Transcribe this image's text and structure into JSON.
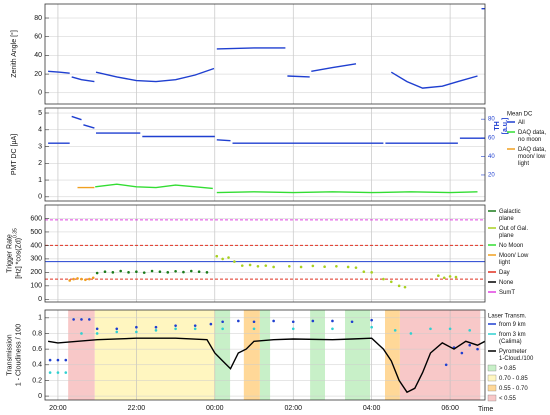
{
  "chart_data": [
    {
      "type": "line",
      "ylabel": [
        "Zenith Angle [°]"
      ],
      "xlim": [
        19.67,
        30.89
      ],
      "ylim": [
        -12,
        95
      ],
      "yticks": [
        0,
        20,
        40,
        60,
        80
      ],
      "grid": true,
      "series": [
        {
          "color": "#1f3fd0",
          "style": "line",
          "x": [
            19.75,
            20.05,
            20.3,
            20.32,
            20.35,
            20.6,
            20.93,
            20.95,
            20.97,
            21.5,
            22.0,
            22.5,
            23.0,
            23.5,
            23.98,
            24.0,
            24.05,
            25.0,
            25.8,
            25.82,
            25.85,
            26.42,
            26.44,
            26.46,
            27.0,
            27.6,
            28.0,
            28.5,
            28.9,
            29.3,
            29.8,
            30.2,
            30.7,
            30.75,
            30.8,
            30.89
          ],
          "values": [
            23,
            22,
            21,
            null,
            17,
            14,
            12,
            null,
            22,
            17,
            13,
            12,
            14,
            19,
            26,
            null,
            47,
            48,
            48,
            null,
            18,
            17,
            null,
            23,
            27,
            31,
            null,
            22,
            12,
            5,
            7,
            12,
            18,
            null,
            90,
            90
          ]
        }
      ]
    },
    {
      "type": "line",
      "ylabel": [
        "PMT DC [µA]"
      ],
      "xlim": [
        19.67,
        30.89
      ],
      "ylim": [
        -0.25,
        5.3
      ],
      "yticks": [
        0,
        1,
        2,
        3,
        4,
        5
      ],
      "grid": true,
      "y2label": [
        "TH",
        "[a.u.]"
      ],
      "y2lim": [
        -8,
        92
      ],
      "y2ticks": [
        20,
        40,
        60,
        80
      ],
      "y2color": "#1f3fd0",
      "legend_title": "Mean DC",
      "series": [
        {
          "name": "All",
          "color": "#1f3fd0",
          "style": "line",
          "x": [
            19.75,
            20.3,
            20.32,
            20.35,
            20.6,
            20.62,
            20.65,
            20.93,
            20.95,
            20.97,
            22.1,
            22.12,
            22.15,
            24.0,
            24.02,
            24.05,
            24.4,
            24.42,
            24.45,
            28.3,
            28.32,
            28.35,
            30.2,
            30.22,
            30.25,
            30.89
          ],
          "values": [
            3.2,
            3.2,
            null,
            4.8,
            4.6,
            null,
            4.3,
            4.1,
            null,
            3.8,
            3.8,
            null,
            3.6,
            3.6,
            null,
            3.4,
            3.35,
            null,
            3.2,
            3.2,
            null,
            3.2,
            3.2,
            null,
            3.5,
            3.5
          ]
        },
        {
          "name": "DAQ data, no moon",
          "color": "#33dd33",
          "style": "line",
          "x": [
            20.95,
            21.5,
            22.0,
            22.5,
            23.0,
            23.5,
            23.95,
            24.0,
            24.05,
            25.0,
            26.0,
            27.0,
            28.0,
            29.0,
            30.0,
            30.7
          ],
          "values": [
            0.6,
            0.75,
            0.6,
            0.55,
            0.7,
            0.6,
            0.5,
            null,
            0.25,
            0.3,
            0.25,
            0.3,
            0.25,
            0.3,
            0.25,
            0.3
          ]
        },
        {
          "name": "DAQ data, moon/ low light",
          "color": "#f0a020",
          "style": "line",
          "x": [
            20.5,
            20.7,
            20.93
          ],
          "values": [
            0.55,
            0.55,
            0.55
          ]
        }
      ]
    },
    {
      "type": "scatter",
      "ylabel": [
        "Trigger Rate",
        "[Hz] *cos(Zd)"
      ],
      "ylabel_exponent": "0.35",
      "xlim": [
        19.67,
        30.89
      ],
      "ylim": [
        -20,
        700
      ],
      "yticks": [
        0,
        100,
        200,
        300,
        400,
        500,
        600
      ],
      "grid": true,
      "reference_lines": [
        {
          "value": 590,
          "color": "#e040e0",
          "dash": true
        },
        {
          "value": 400,
          "color": "#e03020",
          "dash": true
        },
        {
          "value": 280,
          "color": "#2040d0",
          "dash": false
        },
        {
          "value": 150,
          "color": "#e03020",
          "dash": true
        }
      ],
      "legend_lines": [
        {
          "name": "No Moon",
          "color": "#33dd33"
        },
        {
          "name": "Moon/ Low light",
          "color": "#f0a020"
        },
        {
          "name": "Day",
          "color": "#e03020"
        },
        {
          "name": "None",
          "color": "#000000"
        },
        {
          "name": "SumT",
          "color": "#e040e0"
        }
      ],
      "series": [
        {
          "color": "#f0a020",
          "style": "points",
          "x": [
            20.3,
            20.4,
            20.5,
            20.6,
            20.7,
            20.8,
            20.9
          ],
          "values": [
            140,
            150,
            155,
            150,
            145,
            150,
            160
          ]
        },
        {
          "name": "Galactic plane",
          "color": "#1a7a1a",
          "style": "points",
          "x": [
            21.0,
            21.2,
            21.4,
            21.6,
            21.8,
            22.0,
            22.2,
            22.4,
            22.6,
            22.8,
            23.0,
            23.2,
            23.4,
            23.6,
            23.8
          ],
          "values": [
            195,
            205,
            200,
            210,
            200,
            205,
            198,
            210,
            205,
            200,
            208,
            202,
            210,
            205,
            200
          ]
        },
        {
          "name": "Out of Gal. plane",
          "color": "#a8d020",
          "style": "points",
          "x": [
            24.05,
            24.2,
            24.35,
            24.5,
            24.7,
            24.9,
            25.1,
            25.3,
            25.5,
            25.9,
            26.2,
            26.5,
            26.8,
            27.1,
            27.4,
            27.6,
            27.8,
            28.0,
            28.3,
            28.5,
            28.7,
            28.85,
            29.7,
            29.85,
            30.0,
            30.15
          ],
          "values": [
            320,
            300,
            310,
            280,
            250,
            255,
            245,
            250,
            240,
            245,
            240,
            248,
            242,
            245,
            240,
            235,
            205,
            200,
            150,
            130,
            100,
            90,
            175,
            160,
            170,
            165
          ]
        }
      ]
    },
    {
      "type": "line",
      "ylabel": [
        "Transmission",
        "1 - Cloudiness / 100"
      ],
      "xlim": [
        19.67,
        30.89
      ],
      "ylim": [
        -0.05,
        1.1
      ],
      "yticks": [
        0,
        0.2,
        0.4,
        0.6,
        0.8,
        1
      ],
      "grid": true,
      "x_label": "Time",
      "xticks": [
        {
          "value": 20,
          "label": "20:00"
        },
        {
          "value": 22,
          "label": "22:00"
        },
        {
          "value": 24,
          "label": "00:00"
        },
        {
          "value": 26,
          "label": "02:00"
        },
        {
          "value": 28,
          "label": "04:00"
        },
        {
          "value": 30,
          "label": "06:00"
        }
      ],
      "legend_title": "Laser Transm.",
      "band_legend": [
        {
          "label": "> 0.85",
          "color": "#c8f0c8"
        },
        {
          "label": "0.70 - 0.85",
          "color": "#fff6c0"
        },
        {
          "label": "0.55 - 0.70",
          "color": "#ffd898"
        },
        {
          "label": "< 0.55",
          "color": "#f8c8c8"
        }
      ],
      "bands": [
        {
          "start": 20.26,
          "end": 20.94,
          "level": 3
        },
        {
          "start": 20.94,
          "end": 24.0,
          "level": 1
        },
        {
          "start": 24.0,
          "end": 24.39,
          "level": 0
        },
        {
          "start": 24.74,
          "end": 25.15,
          "level": 2
        },
        {
          "start": 25.15,
          "end": 25.41,
          "level": 0
        },
        {
          "start": 26.43,
          "end": 26.81,
          "level": 0
        },
        {
          "start": 27.32,
          "end": 27.96,
          "level": 0
        },
        {
          "start": 28.34,
          "end": 28.72,
          "level": 2
        },
        {
          "start": 28.72,
          "end": 30.77,
          "level": 3
        }
      ],
      "series": [
        {
          "name": "from 9 km",
          "color": "#1f3fd0",
          "style": "points",
          "x": [
            19.8,
            20.0,
            20.2,
            20.4,
            20.6,
            20.8,
            21.0,
            21.5,
            22.0,
            22.5,
            23.0,
            23.5,
            23.9,
            24.2,
            24.6,
            25.0,
            25.5,
            26.0,
            26.5,
            27.0,
            27.5,
            28.0,
            29.9,
            30.1,
            30.3,
            30.5,
            30.7
          ],
          "values": [
            0.46,
            0.46,
            0.46,
            0.98,
            0.98,
            0.98,
            0.86,
            0.86,
            0.88,
            0.88,
            0.9,
            0.9,
            0.92,
            0.95,
            0.96,
            0.95,
            0.96,
            0.95,
            0.96,
            0.96,
            0.95,
            0.97,
            0.4,
            0.62,
            0.55,
            0.65,
            0.6
          ]
        },
        {
          "name": "from 3 km (Calima)",
          "color": "#30d0d0",
          "style": "points",
          "x": [
            19.8,
            20.0,
            20.2,
            20.6,
            21.0,
            21.5,
            22.0,
            22.5,
            23.0,
            23.5,
            24.2,
            25.0,
            26.0,
            27.0,
            28.0,
            28.6,
            29.0,
            29.5,
            30.0,
            30.5
          ],
          "values": [
            0.3,
            0.3,
            0.3,
            0.8,
            0.8,
            0.82,
            0.82,
            0.84,
            0.86,
            0.86,
            0.86,
            0.86,
            0.86,
            0.86,
            0.88,
            0.84,
            0.8,
            0.86,
            0.86,
            0.84
          ]
        },
        {
          "name": "Pyrometer 1-Cloud./100",
          "color": "#000000",
          "style": "line",
          "x": [
            19.75,
            20.0,
            20.5,
            21.0,
            22.0,
            23.0,
            23.8,
            24.0,
            24.2,
            24.4,
            24.6,
            24.8,
            25.0,
            25.5,
            26.0,
            27.0,
            27.5,
            28.0,
            28.3,
            28.5,
            28.7,
            28.9,
            29.1,
            29.3,
            29.5,
            29.8,
            30.1,
            30.4,
            30.7,
            30.89
          ],
          "values": [
            0.7,
            0.68,
            0.7,
            0.72,
            0.74,
            0.74,
            0.72,
            0.55,
            0.45,
            0.35,
            0.55,
            0.6,
            0.7,
            0.72,
            0.73,
            0.72,
            0.73,
            0.74,
            0.6,
            0.45,
            0.2,
            0.05,
            0.1,
            0.3,
            0.55,
            0.68,
            0.6,
            0.7,
            0.65,
            0.7
          ]
        }
      ]
    }
  ]
}
